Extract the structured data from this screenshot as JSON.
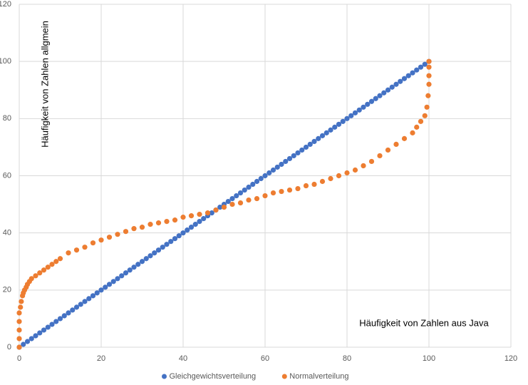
{
  "chart_data": {
    "type": "scatter",
    "annotations": [
      "Häufigkeit von Zahlen allgmein",
      "Häufigkeit von Zahlen aus Java"
    ],
    "xlim": [
      0,
      120
    ],
    "xticks": [
      0,
      20,
      40,
      60,
      80,
      100,
      120
    ],
    "ylim": [
      0,
      120
    ],
    "yticks": [
      0,
      20,
      40,
      60,
      80,
      100,
      120
    ],
    "grid": true,
    "legend": "bottom",
    "series": [
      {
        "name": "Gleichgewichtsverteilung",
        "color": "#4472c4",
        "x": [
          0,
          1,
          2,
          3,
          4,
          5,
          6,
          7,
          8,
          9,
          10,
          11,
          12,
          13,
          14,
          15,
          16,
          17,
          18,
          19,
          20,
          21,
          22,
          23,
          24,
          25,
          26,
          27,
          28,
          29,
          30,
          31,
          32,
          33,
          34,
          35,
          36,
          37,
          38,
          39,
          40,
          41,
          42,
          43,
          44,
          45,
          46,
          47,
          48,
          49,
          50,
          51,
          52,
          53,
          54,
          55,
          56,
          57,
          58,
          59,
          60,
          61,
          62,
          63,
          64,
          65,
          66,
          67,
          68,
          69,
          70,
          71,
          72,
          73,
          74,
          75,
          76,
          77,
          78,
          79,
          80,
          81,
          82,
          83,
          84,
          85,
          86,
          87,
          88,
          89,
          90,
          91,
          92,
          93,
          94,
          95,
          96,
          97,
          98,
          99,
          100
        ],
        "values": [
          0,
          1,
          2,
          3,
          4,
          5,
          6,
          7,
          8,
          9,
          10,
          11,
          12,
          13,
          14,
          15,
          16,
          17,
          18,
          19,
          20,
          21,
          22,
          23,
          24,
          25,
          26,
          27,
          28,
          29,
          30,
          31,
          32,
          33,
          34,
          35,
          36,
          37,
          38,
          39,
          40,
          41,
          42,
          43,
          44,
          45,
          46,
          47,
          48,
          49,
          50,
          51,
          52,
          53,
          54,
          55,
          56,
          57,
          58,
          59,
          60,
          61,
          62,
          63,
          64,
          65,
          66,
          67,
          68,
          69,
          70,
          71,
          72,
          73,
          74,
          75,
          76,
          77,
          78,
          79,
          80,
          81,
          82,
          83,
          84,
          85,
          86,
          87,
          88,
          89,
          90,
          91,
          92,
          93,
          94,
          95,
          96,
          97,
          98,
          99,
          100
        ]
      },
      {
        "name": "Normalverteilung",
        "color": "#ed7d31",
        "x": [
          0,
          0,
          0,
          0,
          0,
          0.3,
          0.5,
          0.8,
          1,
          1.3,
          1.7,
          2,
          2.5,
          3,
          4,
          5,
          6,
          7,
          8,
          9,
          10,
          12,
          14,
          16,
          18,
          20,
          22,
          24,
          26,
          28,
          30,
          32,
          34,
          36,
          38,
          40,
          42,
          44,
          46,
          48,
          50,
          52,
          54,
          56,
          58,
          60,
          62,
          64,
          66,
          68,
          70,
          72,
          74,
          76,
          78,
          80,
          82,
          84,
          86,
          88,
          90,
          92,
          94,
          96,
          97,
          98,
          99,
          99.5,
          99.8,
          100,
          100,
          100,
          100
        ],
        "values": [
          0,
          3,
          6,
          9,
          12,
          14,
          16,
          18,
          19,
          20,
          21,
          22,
          23,
          24,
          25,
          26,
          27,
          28,
          29,
          30,
          31,
          33,
          34,
          35,
          36.5,
          37.5,
          38.5,
          39.5,
          40.5,
          41.5,
          42,
          43,
          43.5,
          44,
          44.5,
          45.5,
          46,
          46.5,
          47,
          48,
          49,
          50,
          50.5,
          51.5,
          52,
          53,
          54,
          54.5,
          55,
          55.5,
          56.5,
          57,
          58,
          59,
          60,
          61,
          62,
          63.5,
          65,
          67,
          69,
          71,
          73,
          75,
          77,
          79,
          81,
          84,
          88,
          92,
          95,
          98,
          100
        ]
      }
    ]
  }
}
